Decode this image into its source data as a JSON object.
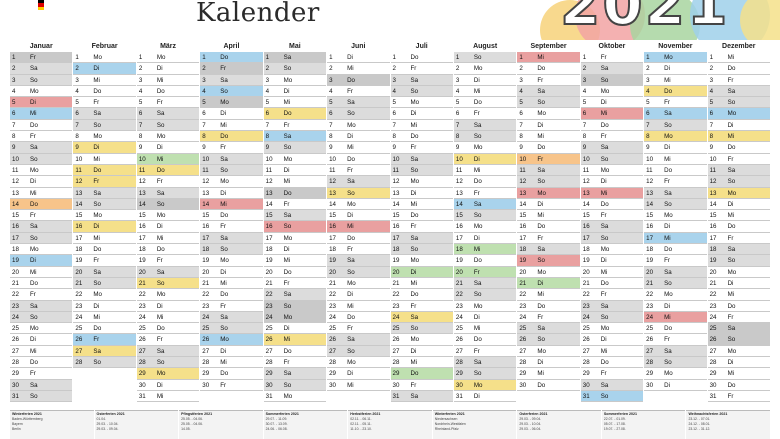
{
  "title": "Kalender",
  "year": "2021",
  "colors": {
    "yellow": "#f5e08a",
    "blue": "#a9d3ec",
    "green": "#bfe0b0",
    "red": "#e9a0a0",
    "orange": "#f7c48a",
    "weekend": "#dcdcdc",
    "holiday": "#c9c9c9"
  },
  "months": [
    {
      "name": "Januar",
      "start": 5,
      "days": 31
    },
    {
      "name": "Februar",
      "start": 1,
      "days": 28
    },
    {
      "name": "März",
      "start": 1,
      "days": 31
    },
    {
      "name": "April",
      "start": 4,
      "days": 30
    },
    {
      "name": "Mai",
      "start": 6,
      "days": 31
    },
    {
      "name": "Juni",
      "start": 2,
      "days": 30
    },
    {
      "name": "Juli",
      "start": 4,
      "days": 31
    },
    {
      "name": "August",
      "start": 0,
      "days": 31
    },
    {
      "name": "September",
      "start": 3,
      "days": 30
    },
    {
      "name": "Oktober",
      "start": 5,
      "days": 31
    },
    {
      "name": "November",
      "start": 1,
      "days": 30
    },
    {
      "name": "Dezember",
      "start": 3,
      "days": 31
    }
  ],
  "weekdays": [
    "So",
    "Mo",
    "Di",
    "Mi",
    "Do",
    "Fr",
    "Sa"
  ],
  "highlights": {
    "0": {
      "1": "ho",
      "5": "cRed",
      "6": "cBlue",
      "14": "cOrange",
      "19": "cBlue"
    },
    "1": {
      "2": "cBlue",
      "9": "cYellow",
      "11": "cYellow",
      "12": "cYellow",
      "16": "cYellow",
      "26": "cBlue",
      "27": "cYellow"
    },
    "2": {
      "10": "cGreen",
      "11": "cYellow",
      "14": "ho",
      "21": "cYellow",
      "29": "cYellow"
    },
    "3": {
      "1": "cBlue",
      "2": "ho",
      "4": "cBlue",
      "5": "ho",
      "8": "cYellow",
      "14": "cRed",
      "26": "cBlue"
    },
    "4": {
      "1": "ho",
      "6": "cYellow",
      "8": "cBlue",
      "13": "ho",
      "16": "cRed",
      "23": "ho",
      "24": "ho",
      "26": "cYellow"
    },
    "5": {
      "3": "ho",
      "13": "cYellow",
      "16": "cRed"
    },
    "6": {
      "20": "cGreen",
      "24": "cYellow",
      "29": "cGreen"
    },
    "7": {
      "10": "cYellow",
      "14": "cBlue",
      "18": "cGreen",
      "20": "cGreen",
      "30": "cYellow"
    },
    "8": {
      "1": "cRed",
      "10": "cOrange",
      "13": "cRed",
      "19": "cRed",
      "21": "cGreen"
    },
    "9": {
      "3": "ho",
      "6": "cRed",
      "13": "cRed",
      "31": "cBlue"
    },
    "10": {
      "1": "cBlue",
      "4": "cYellow",
      "6": "cBlue",
      "8": "cYellow",
      "17": "cBlue",
      "24": "cRed"
    },
    "11": {
      "6": "cBlue",
      "8": "cYellow",
      "13": "cYellow",
      "25": "ho",
      "26": "ho"
    }
  },
  "footer": [
    {
      "head": "Winterferien 2021",
      "lines": [
        "Baden-Württemberg",
        "Bayern",
        "Berlin"
      ]
    },
    {
      "head": "Osterferien 2021",
      "lines": [
        "01.04.",
        "29.03. - 10.04.",
        "29.03. - 09.04."
      ]
    },
    {
      "head": "Pfingstferien 2021",
      "lines": [
        "25.05. - 04.06.",
        "25.05. - 04.06.",
        "14.05."
      ]
    },
    {
      "head": "Sommerferien 2021",
      "lines": [
        "29.07. - 11.09.",
        "30.07. - 13.09.",
        "24.06. - 06.08."
      ]
    },
    {
      "head": "Herbstferien 2021",
      "lines": [
        "02.11. - 06.11.",
        "02.11. - 05.11.",
        "11.10. - 23.10."
      ]
    },
    {
      "head": "Winterferien 2021",
      "lines": [
        "Niedersachsen",
        "Nordrhein-Westfalen",
        "Rheinland-Pfalz"
      ]
    },
    {
      "head": "Osterferien 2021",
      "lines": [
        "29.03. - 09.04.",
        "29.03. - 10.04.",
        "29.03. - 06.04."
      ]
    },
    {
      "head": "Sommerferien 2021",
      "lines": [
        "22.07. - 01.09.",
        "05.07. - 17.08.",
        "19.07. - 27.08."
      ]
    },
    {
      "head": "Weihnachtsferien 2021",
      "lines": [
        "23.12. - 07.01.",
        "24.12. - 08.01.",
        "23.12. - 31.12."
      ]
    }
  ]
}
